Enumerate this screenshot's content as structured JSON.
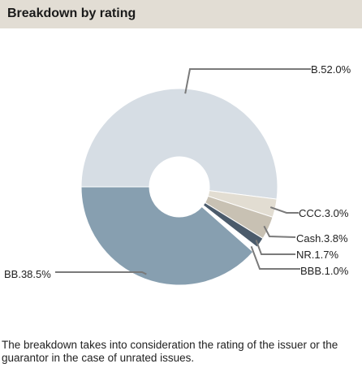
{
  "header": {
    "title": "Breakdown by rating"
  },
  "chart_data": {
    "type": "pie",
    "donut": true,
    "slices": [
      {
        "label": "B",
        "value": 52.0,
        "display": "B.52.0%",
        "color": "#d6dde4"
      },
      {
        "label": "CCC",
        "value": 3.0,
        "display": "CCC.3.0%",
        "color": "#e2ddd2"
      },
      {
        "label": "Cash",
        "value": 3.8,
        "display": "Cash.3.8%",
        "color": "#c8c1b3"
      },
      {
        "label": "NR",
        "value": 1.7,
        "display": "NR.1.7%",
        "color": "#4b5b6b"
      },
      {
        "label": "BBB",
        "value": 1.0,
        "display": "BBB.1.0%",
        "color": "#ffffff"
      },
      {
        "label": "BB",
        "value": 38.5,
        "display": "BB.38.5%",
        "color": "#879fb0"
      }
    ]
  },
  "footnote": {
    "text": "The breakdown takes into consideration the rating of the issuer or the guarantor in the case of unrated issues."
  }
}
